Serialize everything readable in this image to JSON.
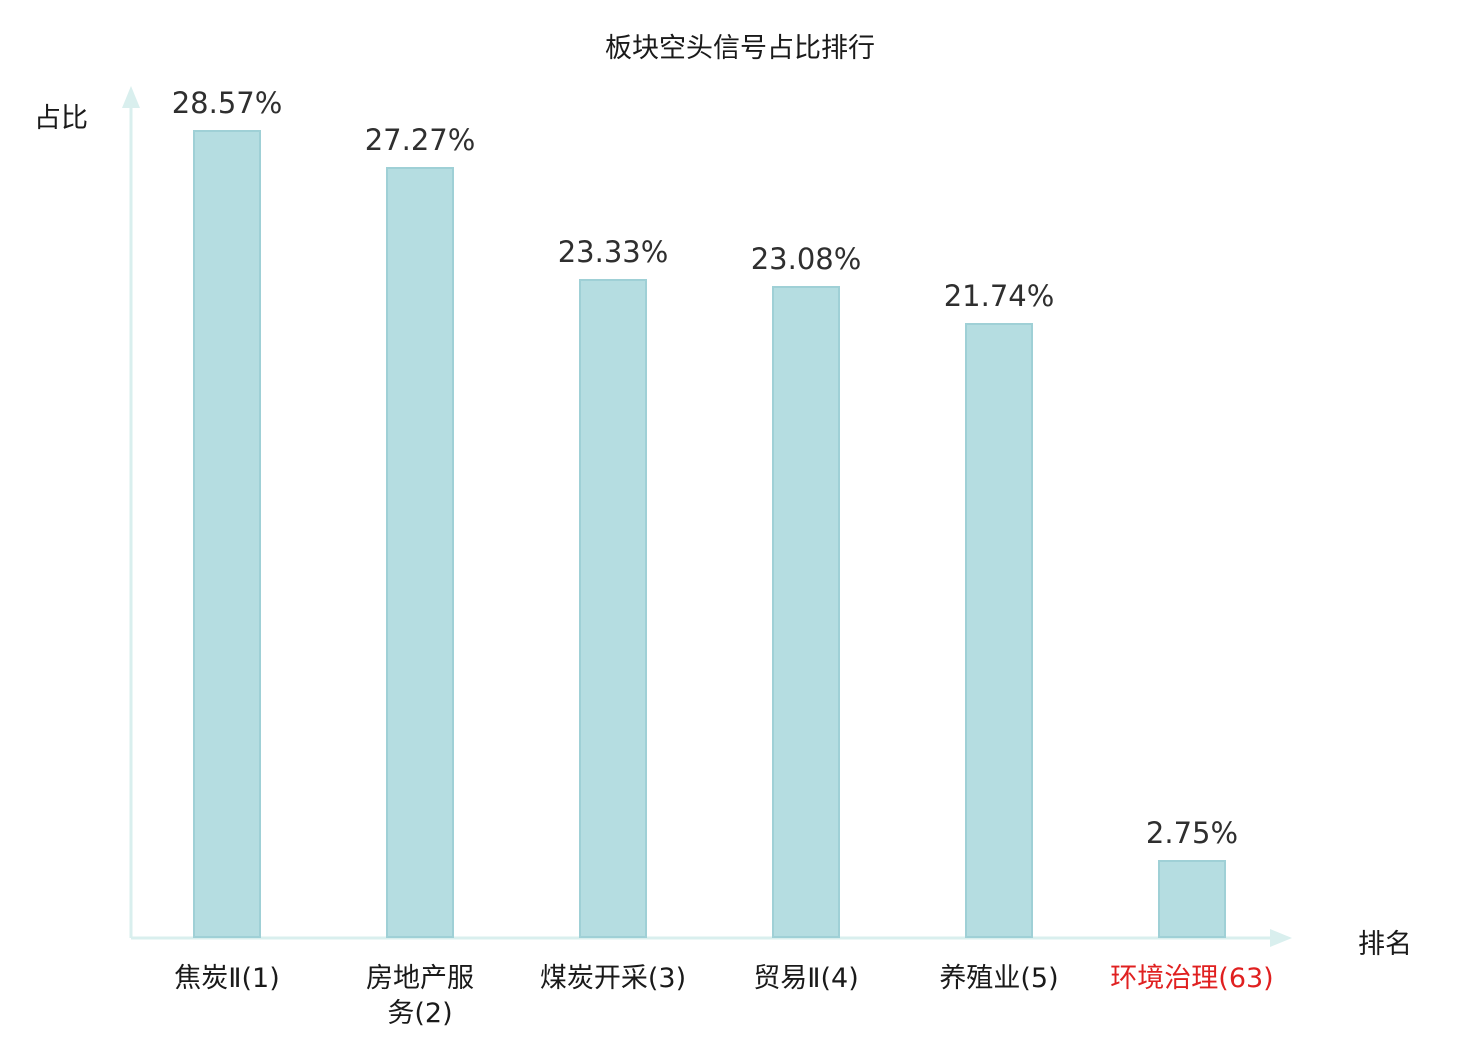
{
  "title": "板块空头信号占比排行",
  "axes": {
    "y_label": "占比",
    "x_label": "排名"
  },
  "colors": {
    "bar_fill": "#b5dde1",
    "bar_border": "#9fd0d6",
    "axis": "#d9efee",
    "value_label": "#2f2f2f",
    "category_default": "#1a1a1a",
    "category_highlight": "#e02020"
  },
  "chart_data": {
    "type": "bar",
    "title": "板块空头信号占比排行",
    "xlabel": "排名",
    "ylabel": "占比",
    "ylim": [
      0,
      30
    ],
    "grid": false,
    "legend": false,
    "categories": [
      "焦炭Ⅱ(1)",
      "房地产服\n务(2)",
      "煤炭开采(3)",
      "贸易Ⅱ(4)",
      "养殖业(5)",
      "环境治理(63)"
    ],
    "values": [
      28.57,
      27.27,
      23.33,
      23.08,
      21.74,
      2.75
    ],
    "value_labels": [
      "28.57%",
      "27.27%",
      "23.33%",
      "23.08%",
      "21.74%",
      "2.75%"
    ],
    "highlight_index": 5
  }
}
